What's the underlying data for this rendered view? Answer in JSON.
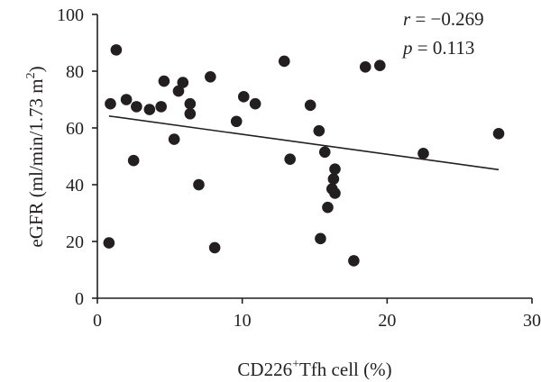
{
  "chart_data": {
    "type": "scatter",
    "xlabel": {
      "main": "CD226",
      "sup": "+",
      "rest": "Tfh cell (%)"
    },
    "ylabel": {
      "main": "eGFR (ml/min/1.73 m",
      "sup": "2",
      "rest": ")"
    },
    "xlim": [
      0,
      30
    ],
    "ylim": [
      0,
      100
    ],
    "xticks": [
      "0",
      "10",
      "20",
      "30"
    ],
    "yticks": [
      "0",
      "20",
      "40",
      "60",
      "80",
      "100"
    ],
    "grid": false,
    "annotations": {
      "r_symbol": "r",
      "r_value": " = −0.269",
      "p_symbol": "p",
      "p_value": " = 0.113"
    },
    "regression": {
      "x": [
        0.8,
        27.7
      ],
      "y": [
        64.2,
        45.3
      ]
    },
    "points": [
      {
        "x": 0.8,
        "y": 19.5
      },
      {
        "x": 0.9,
        "y": 68.5
      },
      {
        "x": 1.3,
        "y": 87.5
      },
      {
        "x": 2.0,
        "y": 70.0
      },
      {
        "x": 2.5,
        "y": 48.5
      },
      {
        "x": 2.7,
        "y": 67.5
      },
      {
        "x": 3.6,
        "y": 66.5
      },
      {
        "x": 4.4,
        "y": 67.5
      },
      {
        "x": 4.6,
        "y": 76.5
      },
      {
        "x": 5.3,
        "y": 56.0
      },
      {
        "x": 5.6,
        "y": 73.0
      },
      {
        "x": 5.9,
        "y": 76.0
      },
      {
        "x": 6.4,
        "y": 68.5
      },
      {
        "x": 6.4,
        "y": 65.0
      },
      {
        "x": 7.0,
        "y": 40.0
      },
      {
        "x": 7.8,
        "y": 78.0
      },
      {
        "x": 8.1,
        "y": 17.8
      },
      {
        "x": 9.6,
        "y": 62.3
      },
      {
        "x": 10.1,
        "y": 71.0
      },
      {
        "x": 10.9,
        "y": 68.5
      },
      {
        "x": 12.9,
        "y": 83.5
      },
      {
        "x": 13.3,
        "y": 49.0
      },
      {
        "x": 14.7,
        "y": 68.0
      },
      {
        "x": 15.3,
        "y": 59.0
      },
      {
        "x": 15.4,
        "y": 21.0
      },
      {
        "x": 15.7,
        "y": 51.5
      },
      {
        "x": 15.9,
        "y": 32.0
      },
      {
        "x": 16.2,
        "y": 38.5
      },
      {
        "x": 16.3,
        "y": 42.0
      },
      {
        "x": 16.4,
        "y": 37.0
      },
      {
        "x": 16.4,
        "y": 45.5
      },
      {
        "x": 17.7,
        "y": 13.2
      },
      {
        "x": 18.5,
        "y": 81.5
      },
      {
        "x": 19.5,
        "y": 82.0
      },
      {
        "x": 22.5,
        "y": 51.0
      },
      {
        "x": 27.7,
        "y": 58.0
      }
    ]
  }
}
